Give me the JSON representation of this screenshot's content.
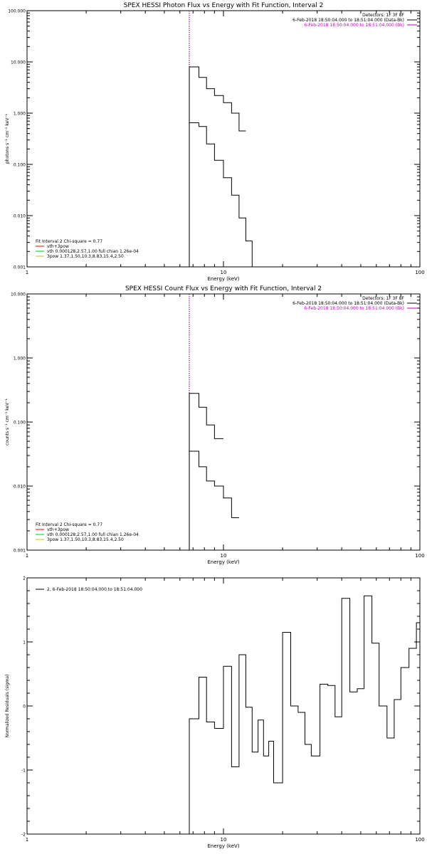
{
  "chart_data": [
    {
      "type": "line",
      "id": "photon",
      "title": "SPEX HESSI Photon Flux vs Energy with Fit Function, Interval 2",
      "xlabel": "Energy (keV)",
      "ylabel": "photons s⁻¹ cm⁻² keV⁻¹",
      "xscale": "log",
      "yscale": "log",
      "xlim": [
        1,
        100
      ],
      "ylim": [
        0.001,
        100
      ],
      "xticks": [
        {
          "v": 1,
          "label": "1"
        },
        {
          "v": 10,
          "label": "10"
        },
        {
          "v": 100,
          "label": "100"
        }
      ],
      "yticks": [
        {
          "v": 0.001,
          "label": "0.001"
        },
        {
          "v": 0.01,
          "label": "0.010"
        },
        {
          "v": 0.1,
          "label": "0.100"
        },
        {
          "v": 1,
          "label": "1.000"
        },
        {
          "v": 10,
          "label": "10.000"
        },
        {
          "v": 100,
          "label": "100.000"
        }
      ],
      "vline": 6.7,
      "vline_color": "#a000a0",
      "header_lines": [
        {
          "text": "Detectors: 1F 3F 8F",
          "color": "#000000"
        },
        {
          "text": "6-Feb-2018 18:50:04.000 to 18:51:04.000 (Data-Bk)",
          "color": "#000000"
        },
        {
          "text": "6-Feb-2018 18:50:04.000 to 18:51:04.000 (Bk)",
          "color": "#c000c0"
        }
      ],
      "fit_title": "Fit Interval 2  Chi-square = 0.77",
      "legend": [
        {
          "label": "vth+3pow",
          "color": "#e00000"
        },
        {
          "label": "vth 0.000128,2.57,1.00  full chian 1.26e-04",
          "color": "#00d000"
        },
        {
          "label": "3pow 1.37,1.50,10.3,8.83,15.4,2.50",
          "color": "#d0c000"
        }
      ],
      "edges": [
        3,
        4,
        5,
        6,
        6.7,
        7.5,
        8.2,
        9,
        10,
        11,
        12,
        13,
        14,
        15,
        16,
        17,
        18,
        20,
        22,
        24,
        26,
        28,
        31,
        34,
        37,
        40,
        44,
        48,
        52,
        57,
        62,
        68,
        74,
        80,
        88,
        96,
        100
      ],
      "series": [
        {
          "color": "#000000",
          "start": 4,
          "values": [
            0.65,
            0.55,
            0.25,
            0.12,
            0.055,
            0.025,
            0.009,
            0.0032,
            0.0009
          ]
        },
        {
          "color": "#000000",
          "start": 4,
          "values": [
            8,
            5,
            3,
            2.2,
            1.6,
            1.0,
            0.45
          ]
        }
      ]
    },
    {
      "type": "line",
      "id": "count",
      "title": "SPEX HESSI Count Flux vs Energy with Fit Function, Interval 2",
      "xlabel": "Energy (keV)",
      "ylabel": "counts s⁻¹ cm⁻² keV⁻¹",
      "xscale": "log",
      "yscale": "log",
      "xlim": [
        1,
        100
      ],
      "ylim": [
        0.001,
        10
      ],
      "xticks": [
        {
          "v": 1,
          "label": "1"
        },
        {
          "v": 10,
          "label": "10"
        },
        {
          "v": 100,
          "label": "100"
        }
      ],
      "yticks": [
        {
          "v": 0.001,
          "label": "0.001"
        },
        {
          "v": 0.01,
          "label": "0.010"
        },
        {
          "v": 0.1,
          "label": "0.100"
        },
        {
          "v": 1,
          "label": "1.000"
        },
        {
          "v": 10,
          "label": "10.000"
        }
      ],
      "vline": 6.7,
      "vline_color": "#a000a0",
      "header_lines": [
        {
          "text": "Detectors: 1F 3F 8F",
          "color": "#000000"
        },
        {
          "text": "6-Feb-2018 18:50:04.000 to 18:51:04.000 (Data-Bk)",
          "color": "#000000"
        },
        {
          "text": "6-Feb-2018 18:50:04.000 to 18:51:04.000 (Bk)",
          "color": "#c000c0"
        }
      ],
      "fit_title": "Fit Interval 2  Chi-square = 0.77",
      "legend": [
        {
          "label": "vth+3pow",
          "color": "#e00000"
        },
        {
          "label": "vth 0.000128,2.57,1.00  full chian 1.26e-04",
          "color": "#00d000"
        },
        {
          "label": "3pow 1.37,1.50,10.3,8.83,15.4,2.50",
          "color": "#d0c000"
        }
      ],
      "edges": [
        3,
        4,
        5,
        6,
        6.7,
        7.5,
        8.2,
        9,
        10,
        11,
        12,
        13,
        14,
        15,
        16,
        17,
        18,
        20,
        22,
        24,
        26,
        28,
        31,
        34,
        37,
        40,
        44,
        48,
        52,
        57,
        62,
        68,
        74,
        80,
        88,
        96,
        100
      ],
      "series": [
        {
          "color": "#000000",
          "start": 4,
          "values": [
            0.035,
            0.02,
            0.012,
            0.01,
            0.0065,
            0.0032
          ]
        },
        {
          "color": "#000000",
          "start": 4,
          "values": [
            0.28,
            0.17,
            0.09,
            0.055
          ]
        }
      ]
    },
    {
      "type": "line",
      "id": "resid",
      "title": "",
      "xlabel": "Energy (keV)",
      "ylabel": "Normalized Residuals (sigma)",
      "xscale": "log",
      "yscale": "linear",
      "xlim": [
        1,
        100
      ],
      "ylim": [
        -2,
        2
      ],
      "xticks": [
        {
          "v": 1,
          "label": "1"
        },
        {
          "v": 10,
          "label": "10"
        },
        {
          "v": 100,
          "label": "100"
        }
      ],
      "yticks": [
        {
          "v": -2,
          "label": "-2"
        },
        {
          "v": -1,
          "label": "-1"
        },
        {
          "v": 0,
          "label": "0"
        },
        {
          "v": 1,
          "label": "1"
        },
        {
          "v": 2,
          "label": "2"
        }
      ],
      "legend": [
        {
          "label": "2,  6-Feb-2018 18:50:04.000 to 18:51:04.000",
          "color": "#000000"
        }
      ],
      "edges": [
        6.7,
        7.5,
        8.2,
        9,
        10,
        11,
        12,
        13,
        14,
        15,
        16,
        17,
        18,
        20,
        22,
        24,
        26,
        28,
        31,
        34,
        37,
        40,
        44,
        48,
        52,
        57,
        62,
        68,
        74,
        80,
        88,
        96,
        100
      ],
      "series": [
        {
          "name": "",
          "color": "#000000",
          "values": [
            -0.2,
            0.45,
            -0.25,
            -0.35,
            0.62,
            -0.95,
            0.8,
            -0.02,
            -0.72,
            -0.22,
            -0.78,
            -0.55,
            -1.2,
            1.15,
            0.0,
            -0.1,
            -0.6,
            -0.78,
            0.34,
            0.32,
            -0.17,
            1.68,
            0.22,
            0.27,
            1.72,
            0.98,
            0.0,
            -0.5,
            0.1,
            0.6,
            0.9,
            1.3
          ]
        }
      ]
    }
  ]
}
